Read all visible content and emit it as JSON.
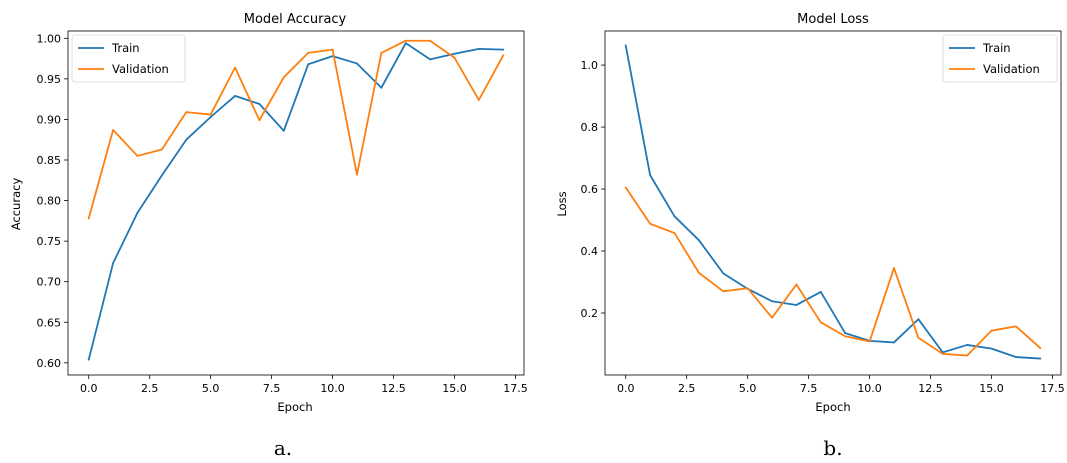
{
  "colors": {
    "train": "#1f77b4",
    "validation": "#ff7f0e"
  },
  "chart_data": [
    {
      "type": "line",
      "title": "Model Accuracy",
      "xlabel": "Epoch",
      "ylabel": "Accuracy",
      "caption": "a.",
      "xlim": [
        -0.85,
        17.85
      ],
      "ylim": [
        0.585,
        1.009
      ],
      "xticks": [
        0.0,
        2.5,
        5.0,
        7.5,
        10.0,
        12.5,
        15.0,
        17.5
      ],
      "xtick_labels": [
        "0.0",
        "2.5",
        "5.0",
        "7.5",
        "10.0",
        "12.5",
        "15.0",
        "17.5"
      ],
      "yticks": [
        0.6,
        0.65,
        0.7,
        0.75,
        0.8,
        0.85,
        0.9,
        0.95,
        1.0
      ],
      "ytick_labels": [
        "0.60",
        "0.65",
        "0.70",
        "0.75",
        "0.80",
        "0.85",
        "0.90",
        "0.95",
        "1.00"
      ],
      "legend_position": "top-left",
      "x": [
        0,
        1,
        2,
        3,
        4,
        5,
        6,
        7,
        8,
        9,
        10,
        11,
        12,
        13,
        14,
        15,
        16,
        17
      ],
      "series": [
        {
          "name": "Train",
          "color": "#1f77b4",
          "values": [
            0.604,
            0.723,
            0.785,
            0.831,
            0.875,
            0.903,
            0.929,
            0.919,
            0.886,
            0.968,
            0.978,
            0.969,
            0.939,
            0.994,
            0.974,
            0.981,
            0.987,
            0.986
          ]
        },
        {
          "name": "Validation",
          "color": "#ff7f0e",
          "values": [
            0.778,
            0.887,
            0.855,
            0.863,
            0.909,
            0.906,
            0.964,
            0.899,
            0.952,
            0.982,
            0.986,
            0.832,
            0.982,
            0.997,
            0.997,
            0.976,
            0.924,
            0.979
          ]
        }
      ]
    },
    {
      "type": "line",
      "title": "Model Loss",
      "xlabel": "Epoch",
      "ylabel": "Loss",
      "caption": "b.",
      "xlim": [
        -0.85,
        17.85
      ],
      "ylim": [
        0.0,
        1.11
      ],
      "xticks": [
        0.0,
        2.5,
        5.0,
        7.5,
        10.0,
        12.5,
        15.0,
        17.5
      ],
      "xtick_labels": [
        "0.0",
        "2.5",
        "5.0",
        "7.5",
        "10.0",
        "12.5",
        "15.0",
        "17.5"
      ],
      "yticks": [
        0.2,
        0.4,
        0.6,
        0.8,
        1.0
      ],
      "ytick_labels": [
        "0.2",
        "0.4",
        "0.6",
        "0.8",
        "1.0"
      ],
      "legend_position": "top-right",
      "x": [
        0,
        1,
        2,
        3,
        4,
        5,
        6,
        7,
        8,
        9,
        10,
        11,
        12,
        13,
        14,
        15,
        16,
        17
      ],
      "series": [
        {
          "name": "Train",
          "color": "#1f77b4",
          "values": [
            1.063,
            0.645,
            0.512,
            0.435,
            0.328,
            0.278,
            0.238,
            0.226,
            0.268,
            0.135,
            0.11,
            0.105,
            0.18,
            0.073,
            0.097,
            0.085,
            0.058,
            0.053
          ]
        },
        {
          "name": "Validation",
          "color": "#ff7f0e",
          "values": [
            0.605,
            0.488,
            0.458,
            0.33,
            0.27,
            0.28,
            0.185,
            0.292,
            0.17,
            0.125,
            0.108,
            0.345,
            0.12,
            0.068,
            0.063,
            0.143,
            0.157,
            0.087
          ]
        }
      ]
    }
  ]
}
